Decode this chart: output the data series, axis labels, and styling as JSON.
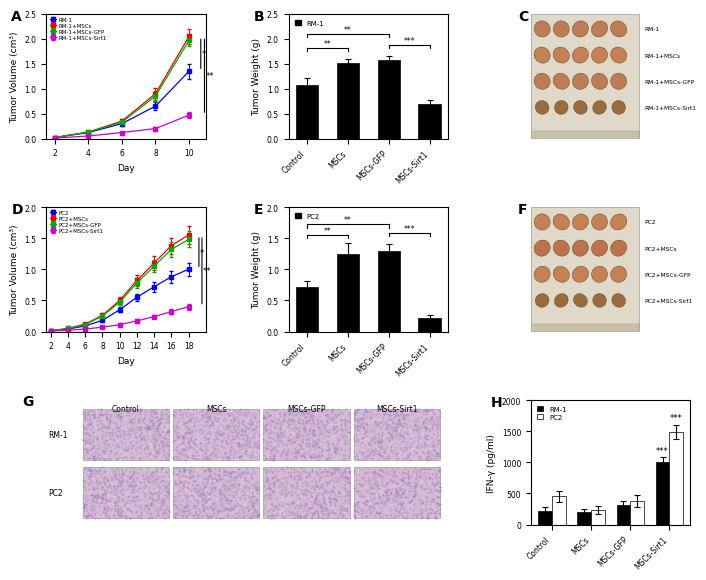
{
  "panel_A": {
    "days": [
      2,
      4,
      6,
      8,
      10
    ],
    "RM1": [
      0.02,
      0.12,
      0.3,
      0.65,
      1.35
    ],
    "RM1_err": [
      0.01,
      0.02,
      0.04,
      0.08,
      0.15
    ],
    "RM1_MSCs": [
      0.02,
      0.13,
      0.35,
      0.9,
      2.05
    ],
    "RM1_MSCs_err": [
      0.01,
      0.03,
      0.05,
      0.12,
      0.15
    ],
    "RM1_MSCs_GFP": [
      0.02,
      0.13,
      0.33,
      0.85,
      1.97
    ],
    "RM1_MSCs_GFP_err": [
      0.01,
      0.02,
      0.05,
      0.1,
      0.12
    ],
    "RM1_MSCs_Sirt1": [
      0.01,
      0.05,
      0.12,
      0.2,
      0.47
    ],
    "RM1_MSCs_Sirt1_err": [
      0.01,
      0.01,
      0.02,
      0.04,
      0.06
    ],
    "ylabel": "Tumor Volume (cm³)",
    "xlabel": "Day",
    "ylim": [
      0,
      2.5
    ],
    "yticks": [
      0.0,
      0.5,
      1.0,
      1.5,
      2.0,
      2.5
    ],
    "colors": [
      "#0000EE",
      "#EE0000",
      "#00AA00",
      "#CC00CC"
    ],
    "labels": [
      "RM-1",
      "RM-1+MSCs",
      "RM-1+MSCs-GFP",
      "RM-1+MSCs-Sirt1"
    ]
  },
  "panel_B": {
    "categories": [
      "Control",
      "MSCs",
      "MSCs-GFP",
      "MSCs-Sirt1"
    ],
    "values": [
      1.07,
      1.52,
      1.58,
      0.7
    ],
    "errors": [
      0.14,
      0.08,
      0.07,
      0.08
    ],
    "ylabel": "Tumor Weight (g)",
    "ylim": [
      0,
      2.5
    ],
    "yticks": [
      0.0,
      0.5,
      1.0,
      1.5,
      2.0,
      2.5
    ],
    "legend_label": "RM-1",
    "bar_color": "#000000"
  },
  "panel_D": {
    "days": [
      2,
      4,
      6,
      8,
      10,
      12,
      14,
      16,
      18
    ],
    "PC2": [
      0.01,
      0.04,
      0.09,
      0.18,
      0.35,
      0.55,
      0.72,
      0.88,
      1.0
    ],
    "PC2_err": [
      0.01,
      0.01,
      0.01,
      0.02,
      0.04,
      0.06,
      0.08,
      0.1,
      0.1
    ],
    "PC2_MSCs": [
      0.01,
      0.05,
      0.12,
      0.26,
      0.5,
      0.82,
      1.1,
      1.38,
      1.55
    ],
    "PC2_MSCs_err": [
      0.01,
      0.01,
      0.02,
      0.03,
      0.05,
      0.09,
      0.11,
      0.13,
      0.14
    ],
    "PC2_MSCs_GFP": [
      0.01,
      0.05,
      0.11,
      0.25,
      0.47,
      0.78,
      1.05,
      1.32,
      1.48
    ],
    "PC2_MSCs_GFP_err": [
      0.01,
      0.01,
      0.02,
      0.03,
      0.05,
      0.08,
      0.1,
      0.12,
      0.13
    ],
    "PC2_MSCs_Sirt1": [
      0.01,
      0.02,
      0.04,
      0.07,
      0.11,
      0.17,
      0.24,
      0.32,
      0.4
    ],
    "PC2_MSCs_Sirt1_err": [
      0.01,
      0.01,
      0.01,
      0.01,
      0.02,
      0.03,
      0.03,
      0.04,
      0.05
    ],
    "ylabel": "Tumor Volume (cm³)",
    "xlabel": "Day",
    "ylim": [
      0,
      2.0
    ],
    "yticks": [
      0.0,
      0.5,
      1.0,
      1.5,
      2.0
    ],
    "colors": [
      "#0000EE",
      "#EE0000",
      "#00AA00",
      "#CC00CC"
    ],
    "labels": [
      "PC2",
      "PC2+MSCs",
      "PC2+MSCs-GFP",
      "PC2+MSCs-Sirt1"
    ]
  },
  "panel_E": {
    "categories": [
      "Control",
      "MSCs",
      "MSCs-GFP",
      "MSCs-Sirt1"
    ],
    "values": [
      0.72,
      1.25,
      1.3,
      0.22
    ],
    "errors": [
      0.09,
      0.17,
      0.11,
      0.05
    ],
    "ylabel": "Tumor Weight (g)",
    "ylim": [
      0,
      2.0
    ],
    "yticks": [
      0.0,
      0.5,
      1.0,
      1.5,
      2.0
    ],
    "legend_label": "PC2",
    "bar_color": "#000000"
  },
  "panel_G": {
    "col_labels": [
      "Control",
      "MSCs",
      "MSCs-GFP",
      "MSCs-Sirt1"
    ],
    "row_labels": [
      "RM-1",
      "PC2"
    ],
    "hist_color": "#C896C8",
    "hist_color2": "#D4A8D4"
  },
  "panel_H": {
    "categories": [
      "Control",
      "MSCs",
      "MSCs-GFP",
      "MSCs-Sirt1"
    ],
    "RM1_values": [
      220,
      195,
      310,
      1000
    ],
    "RM1_errors": [
      70,
      55,
      75,
      90
    ],
    "PC2_values": [
      455,
      240,
      385,
      1490
    ],
    "PC2_errors": [
      88,
      65,
      95,
      115
    ],
    "ylabel": "IFN-γ (pg/ml)",
    "ylim": [
      0,
      2000
    ],
    "yticks": [
      0,
      500,
      1000,
      1500,
      2000
    ],
    "color_RM1": "#000000",
    "color_PC2": "#FFFFFF"
  },
  "lfs": 6.5,
  "tfs": 5.5,
  "plfs": 10
}
